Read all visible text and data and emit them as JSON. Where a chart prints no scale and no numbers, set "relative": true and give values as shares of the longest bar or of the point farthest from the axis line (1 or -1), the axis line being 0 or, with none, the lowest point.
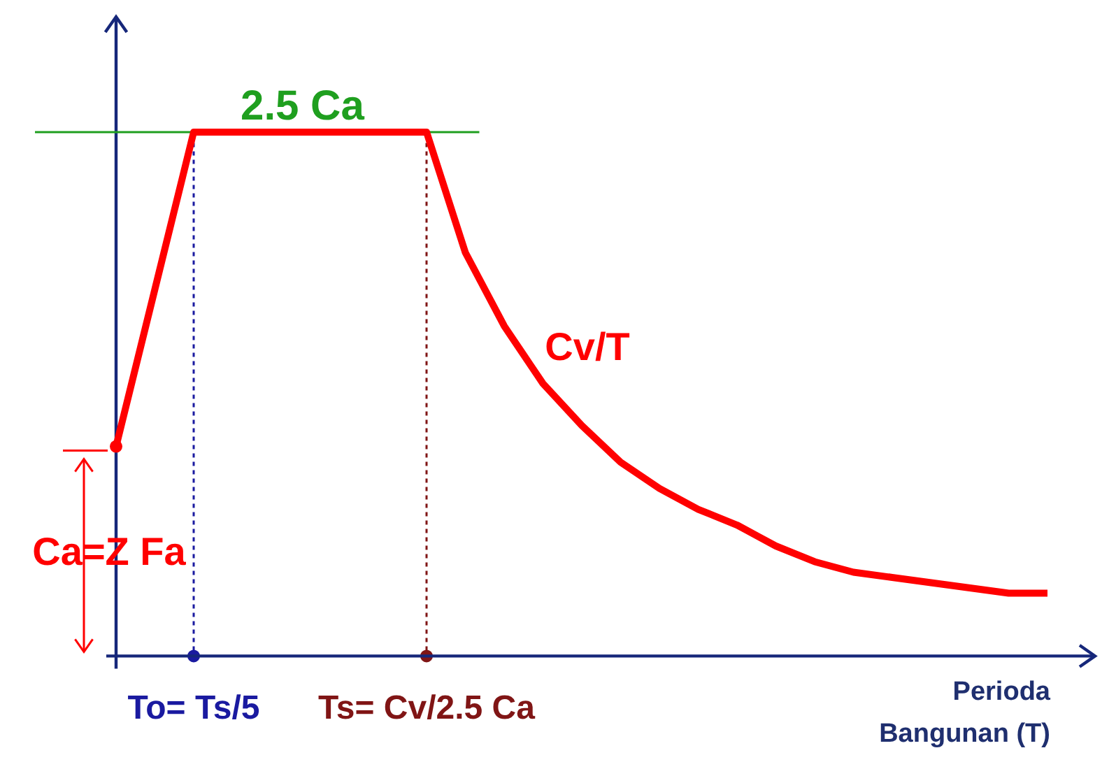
{
  "chart_data": {
    "type": "line",
    "relative": true,
    "categories": [
      null,
      null,
      "To= Ts/5",
      null,
      null,
      null,
      null,
      null,
      "Ts= Cv/2.5 Ca",
      null,
      null,
      null,
      null,
      null,
      null,
      null,
      null,
      null,
      null,
      null,
      null,
      null,
      null,
      null,
      null
    ],
    "series": [
      {
        "color": "#ff0000",
        "values": [
          0.4,
          0.7,
          1,
          1,
          1,
          1,
          1,
          1,
          1,
          0.77,
          0.63,
          0.52,
          0.44,
          0.37,
          0.32,
          0.28,
          0.25,
          0.21,
          0.18,
          0.16,
          0.15,
          0.14,
          0.13,
          0.12,
          0.12
        ]
      }
    ],
    "xlabel": "Perioda Bangunan (T)",
    "ref_lines": [
      {
        "axis": "y",
        "value": 1,
        "label": "2.5 Ca",
        "color": "#1f9f1f",
        "line_style": "solid"
      },
      {
        "axis": "x",
        "value": "To= Ts/5",
        "color": "#1a1aa0",
        "line_style": "dotted"
      },
      {
        "axis": "x",
        "value": "Ts= Cv/2.5 Ca",
        "color": "#801515",
        "line_style": "dotted"
      }
    ],
    "annotations": [
      {
        "text": "Ca=Z Fa",
        "y": 0.4
      },
      "Cv/T"
    ],
    "marker": "none"
  }
}
